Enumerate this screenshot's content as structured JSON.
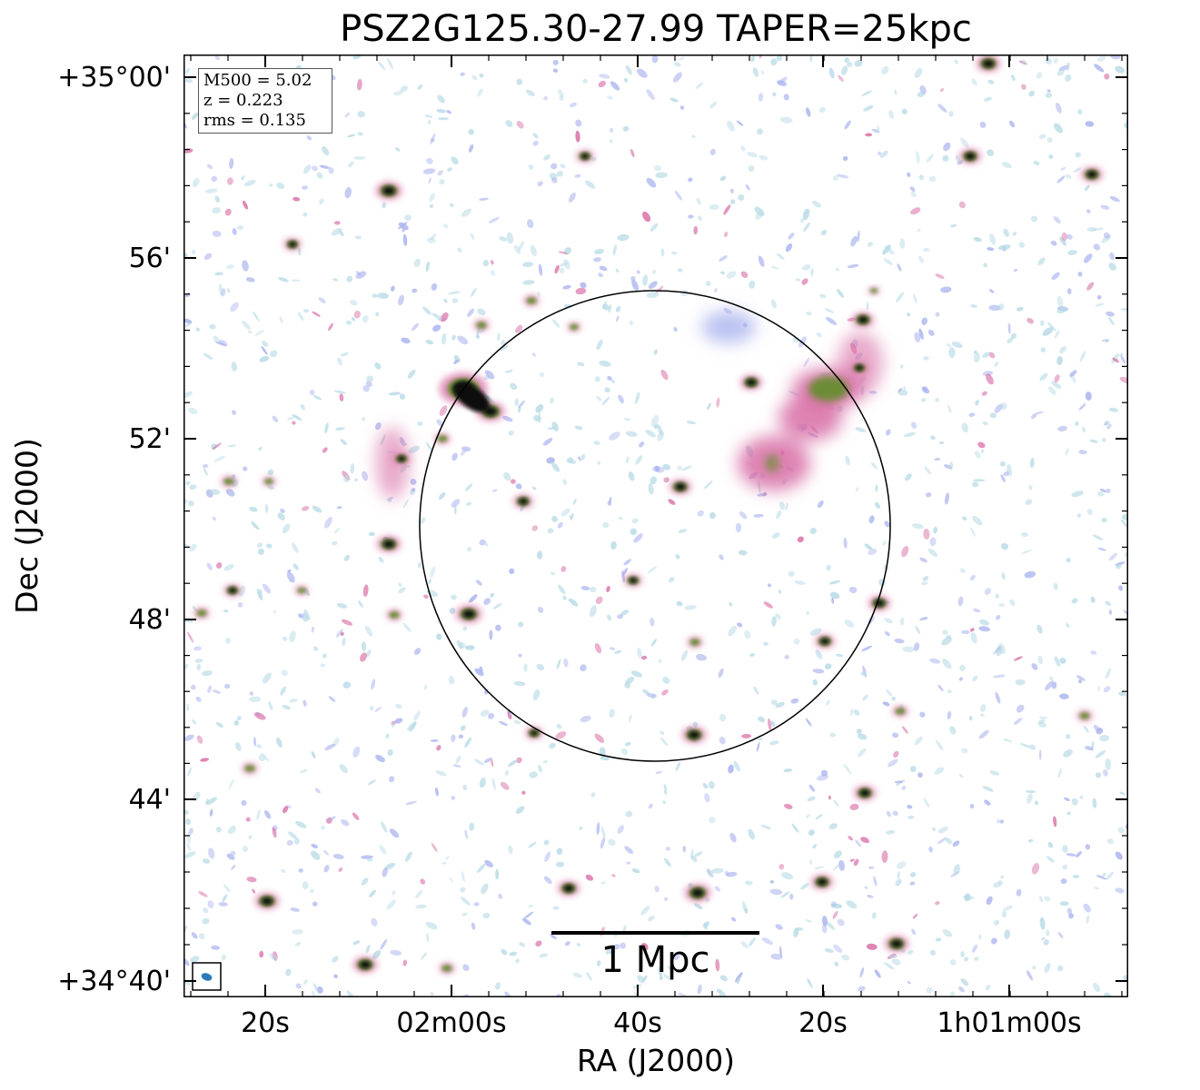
{
  "title": "PSZ2G125.30-27.99 TAPER=25kpc",
  "axes": {
    "xlabel": "RA (J2000)",
    "ylabel": "Dec (J2000)",
    "xticks": [
      "20s",
      "02m00s",
      "40s",
      "20s",
      "1h01m00s"
    ],
    "yticks": [
      "+35°00'",
      "56'",
      "52'",
      "48'",
      "44'",
      "+34°40'"
    ]
  },
  "info": {
    "m500": "M500 = 5.02",
    "z": "z = 0.223",
    "rms": "rms = 0.135"
  },
  "scalebar": {
    "label": "1 Mpc"
  },
  "colors": {
    "frame": "#000000",
    "faint": "#b9dbe6",
    "low": "#aab3ee",
    "mid": "#d86fa6",
    "high": "#5f8e2a",
    "peak": "#0a0a0a",
    "beam": "#2b7bbb"
  }
}
